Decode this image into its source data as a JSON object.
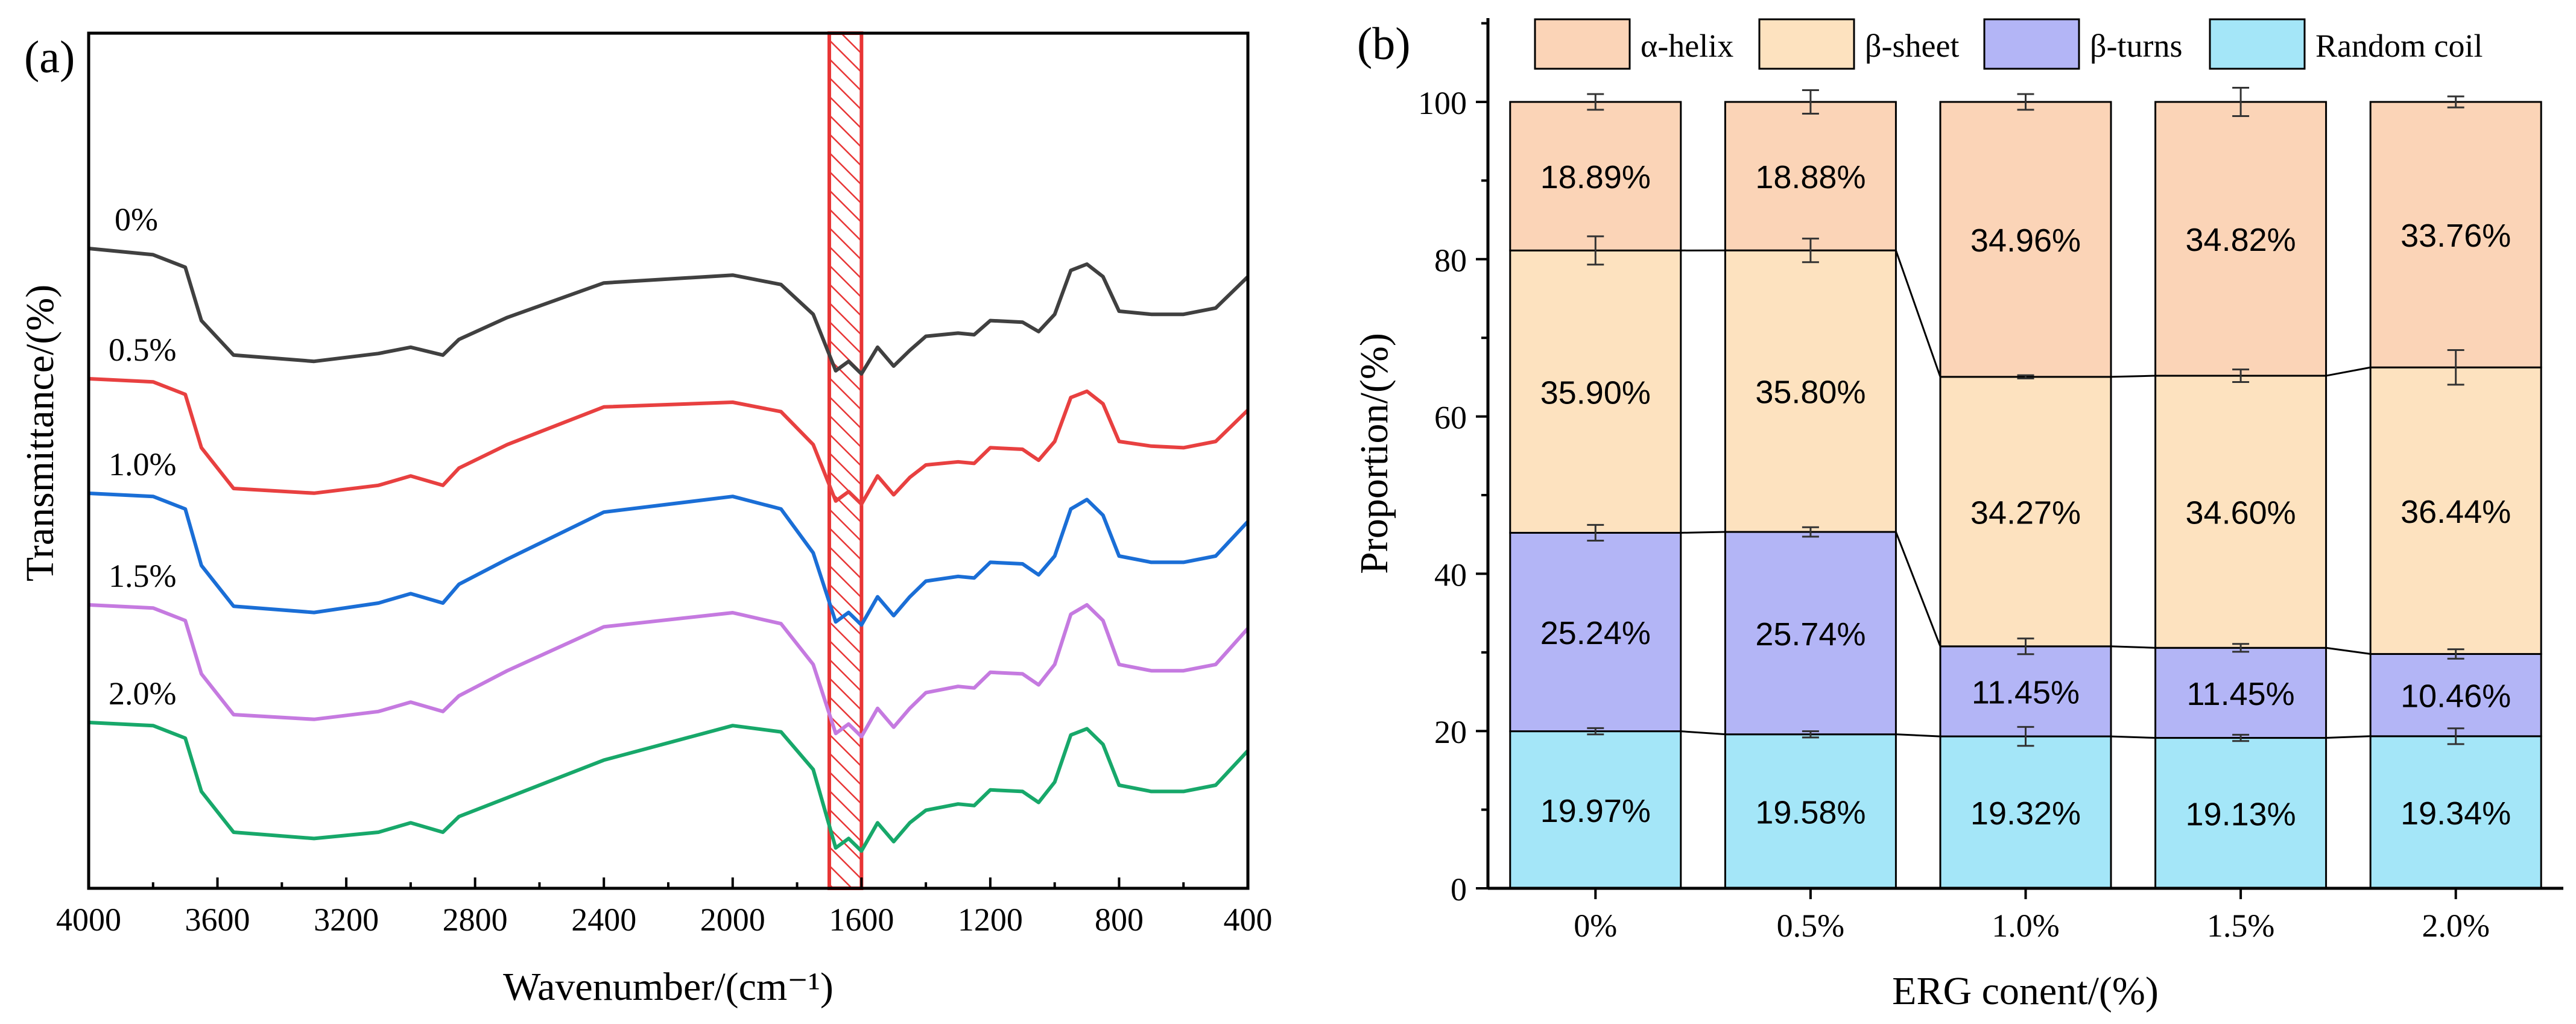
{
  "colors": {
    "random_coil": "#a4e6f8",
    "beta_turns": "#b3b5f6",
    "beta_sheet": "#fde2bf",
    "alpha_helix": "#fbd4b7",
    "hatch": "#e83535",
    "line_0": "#404040",
    "line_05": "#e84040",
    "line_10": "#1a6ed6",
    "line_15": "#c57ae0",
    "line_20": "#17a86a"
  },
  "panel_a": {
    "label": "(a)",
    "xlabel": "Wavenumber/(cm⁻¹)",
    "ylabel": "Transmittance/(%)",
    "xticks": [
      "4000",
      "3600",
      "3200",
      "2800",
      "2400",
      "2000",
      "1600",
      "1200",
      "800",
      "400"
    ],
    "series_labels": [
      "0%",
      "0.5%",
      "1.0%",
      "1.5%",
      "2.0%"
    ]
  },
  "panel_b": {
    "label": "(b)",
    "xlabel": "ERG conent/(%)",
    "ylabel": "Proportion/(%)",
    "yticks": [
      "0",
      "20",
      "40",
      "60",
      "80",
      "100"
    ],
    "legend": [
      "α-helix",
      "β-sheet",
      "β-turns",
      "Random coil"
    ]
  },
  "chart_data": [
    {
      "type": "line",
      "title": "",
      "xlabel": "Wavenumber/(cm⁻¹)",
      "ylabel": "Transmittance/(%)",
      "xlim": [
        4000,
        400
      ],
      "x": [
        4000,
        3800,
        3700,
        3650,
        3550,
        3300,
        3100,
        3000,
        2900,
        2850,
        2700,
        2400,
        2000,
        1850,
        1750,
        1680,
        1640,
        1600,
        1550,
        1500,
        1450,
        1400,
        1300,
        1250,
        1200,
        1100,
        1050,
        1000,
        950,
        900,
        850,
        800,
        700,
        600,
        500,
        400
      ],
      "series": [
        {
          "name": "0%",
          "values": [
            0.0,
            -4,
            -12,
            -46,
            -68,
            -72,
            -67,
            -63,
            -68,
            -58,
            -44,
            -22,
            -17,
            -23,
            -42,
            -78,
            -72,
            -80,
            -63,
            -75,
            -65,
            -56,
            -54,
            -55,
            -46,
            -47,
            -53,
            -42,
            -14,
            -10,
            -18,
            -40,
            -42,
            -42,
            -38,
            -18
          ]
        },
        {
          "name": "0.5%",
          "values": [
            0.0,
            -2,
            -10,
            -44,
            -70,
            -73,
            -68,
            -62,
            -68,
            -57,
            -42,
            -18,
            -15,
            -21,
            -42,
            -78,
            -72,
            -80,
            -62,
            -74,
            -63,
            -55,
            -53,
            -54,
            -44,
            -45,
            -52,
            -40,
            -12,
            -8,
            -16,
            -40,
            -43,
            -44,
            -40,
            -20
          ]
        },
        {
          "name": "1.0%",
          "values": [
            0.0,
            -2,
            -10,
            -46,
            -72,
            -76,
            -70,
            -64,
            -70,
            -58,
            -42,
            -12,
            -2,
            -10,
            -38,
            -82,
            -76,
            -84,
            -66,
            -78,
            -66,
            -56,
            -53,
            -54,
            -44,
            -45,
            -52,
            -40,
            -10,
            -4,
            -14,
            -40,
            -44,
            -44,
            -40,
            -18
          ]
        },
        {
          "name": "1.5%",
          "values": [
            0.0,
            -2,
            -10,
            -44,
            -70,
            -73,
            -68,
            -62,
            -68,
            -58,
            -42,
            -14,
            -5,
            -12,
            -38,
            -82,
            -76,
            -84,
            -66,
            -78,
            -66,
            -56,
            -52,
            -53,
            -43,
            -44,
            -51,
            -38,
            -6,
            0,
            -10,
            -38,
            -42,
            -42,
            -38,
            -15
          ]
        },
        {
          "name": "2.0%",
          "values": [
            0.0,
            -2,
            -10,
            -44,
            -70,
            -74,
            -70,
            -64,
            -70,
            -60,
            -48,
            -24,
            -2,
            -6,
            -30,
            -80,
            -74,
            -82,
            -64,
            -76,
            -64,
            -56,
            -52,
            -53,
            -43,
            -44,
            -51,
            -38,
            -8,
            -4,
            -14,
            -40,
            -44,
            -44,
            -40,
            -18
          ]
        }
      ],
      "highlight_band": [
        1700,
        1600
      ],
      "yaxis_ticks": "none"
    },
    {
      "type": "bar",
      "stacked": true,
      "title": "",
      "xlabel": "ERG conent/(%)",
      "ylabel": "Proportion/(%)",
      "ylim": [
        0,
        110
      ],
      "categories": [
        "0%",
        "0.5%",
        "1.0%",
        "1.5%",
        "2.0%"
      ],
      "series": [
        {
          "name": "Random coil",
          "values": [
            19.97,
            19.58,
            19.32,
            19.13,
            19.34
          ],
          "labels": [
            "19.97%",
            "19.58%",
            "19.32%",
            "19.13%",
            "19.34%"
          ],
          "errors": [
            0.4,
            0.4,
            1.2,
            0.4,
            1.0
          ]
        },
        {
          "name": "β-turns",
          "values": [
            25.24,
            25.74,
            11.45,
            11.45,
            10.46
          ],
          "labels": [
            "25.24%",
            "25.74%",
            "11.45%",
            "11.45%",
            "10.46%"
          ],
          "errors": [
            1.0,
            0.6,
            1.0,
            0.5,
            0.6
          ]
        },
        {
          "name": "β-sheet",
          "values": [
            35.9,
            35.8,
            34.27,
            34.6,
            36.44
          ],
          "labels": [
            "35.90%",
            "35.80%",
            "34.27%",
            "34.60%",
            "36.44%"
          ],
          "errors": [
            1.8,
            1.5,
            0.2,
            0.8,
            2.2
          ]
        },
        {
          "name": "α-helix",
          "values": [
            18.89,
            18.88,
            34.96,
            34.82,
            33.76
          ],
          "labels": [
            "18.89%",
            "18.88%",
            "34.96%",
            "34.82%",
            "33.76%"
          ],
          "errors": [
            1.0,
            1.5,
            1.0,
            1.8,
            0.7
          ]
        }
      ],
      "legend_position": "top"
    }
  ]
}
